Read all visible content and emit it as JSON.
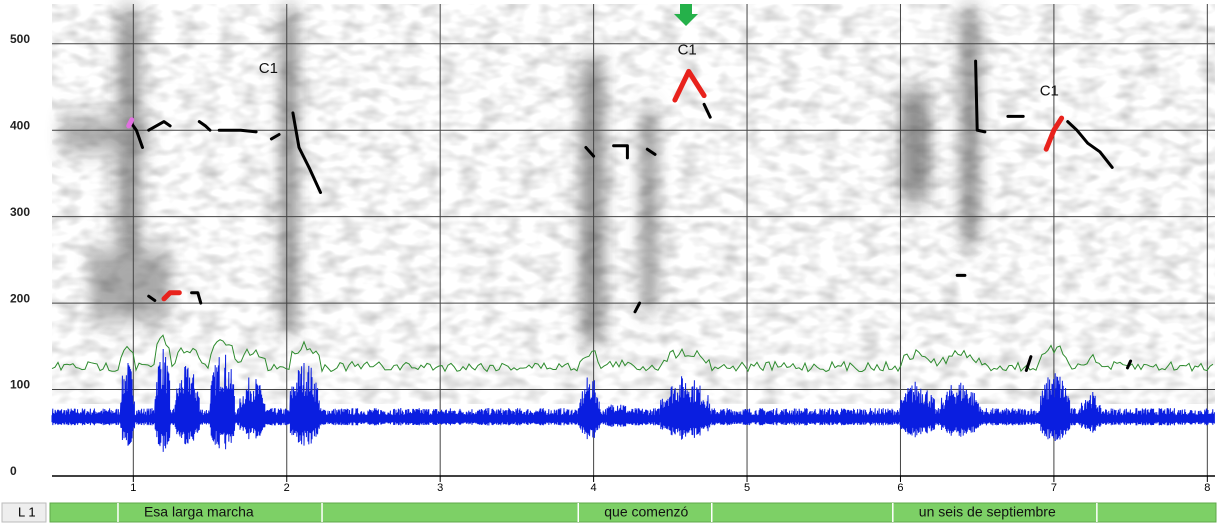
{
  "chart_data": {
    "type": "line",
    "xlim": [
      0.47,
      8.05
    ],
    "ylim": [
      0,
      546
    ],
    "xticks": [
      1,
      2,
      3,
      4,
      5,
      6,
      7,
      8
    ],
    "yticks": [
      0,
      100,
      200,
      300,
      400,
      500
    ],
    "grid": true,
    "series": [
      {
        "color": "#000000",
        "x": [
          0.98,
          1.02,
          1.06,
          1.07,
          1.1,
          1.2,
          1.24,
          1.25,
          1.43,
          1.47,
          1.5,
          1.51,
          1.56,
          1.7,
          1.8,
          1.81,
          1.9,
          1.95,
          1.96,
          2.04,
          2.08,
          2.15,
          2.22,
          2.23,
          1.1,
          1.14,
          1.15,
          1.38,
          1.42,
          1.44,
          1.45,
          3.95,
          4.0,
          4.01,
          4.13,
          4.22,
          4.22,
          4.23,
          4.35,
          4.4,
          4.41,
          4.27,
          4.3,
          4.31,
          4.72,
          4.76,
          4.77,
          6.49,
          6.5,
          6.55,
          6.56,
          6.7,
          6.8,
          6.81,
          7.09,
          7.15,
          7.22,
          7.3,
          7.38,
          7.39,
          6.37,
          6.42,
          6.43,
          6.82,
          6.85,
          6.86,
          7.48,
          7.5
        ],
        "values": [
          410,
          400,
          380,
          null,
          400,
          410,
          405,
          null,
          410,
          405,
          400,
          null,
          400,
          400,
          398,
          null,
          390,
          395,
          null,
          420,
          380,
          355,
          328,
          null,
          208,
          203,
          null,
          212,
          212,
          200,
          null,
          380,
          370,
          null,
          382,
          382,
          368,
          null,
          378,
          372,
          null,
          190,
          200,
          null,
          430,
          415,
          null,
          480,
          400,
          398,
          null,
          416,
          416,
          null,
          410,
          400,
          385,
          375,
          357,
          null,
          232,
          232,
          null,
          122,
          138,
          null,
          125,
          133
        ]
      },
      {
        "color": "#e8221c",
        "x": [
          1.2,
          1.24,
          1.3,
          1.31,
          4.53,
          4.62,
          4.72,
          4.73,
          6.95,
          7.0,
          7.05
        ],
        "values": [
          205,
          212,
          212,
          null,
          435,
          468,
          440,
          null,
          378,
          400,
          414
        ]
      },
      {
        "color": "#e070e0",
        "x": [
          0.97,
          0.99
        ],
        "values": [
          405,
          412
        ]
      }
    ],
    "annotations": [
      {
        "text": "C1",
        "x": 1.88,
        "y": 471
      },
      {
        "text": "C1",
        "x": 4.61,
        "y": 492
      },
      {
        "text": "C1",
        "x": 6.97,
        "y": 445
      }
    ],
    "tier": {
      "label": "L 1",
      "intervals": [
        {
          "text": "Esa larga marcha",
          "start": 0.9,
          "end": 2.23
        },
        {
          "text": "que comenzó",
          "start": 3.9,
          "end": 4.77
        },
        {
          "text": "un seis de septiembre",
          "start": 5.95,
          "end": 7.28
        }
      ]
    }
  }
}
